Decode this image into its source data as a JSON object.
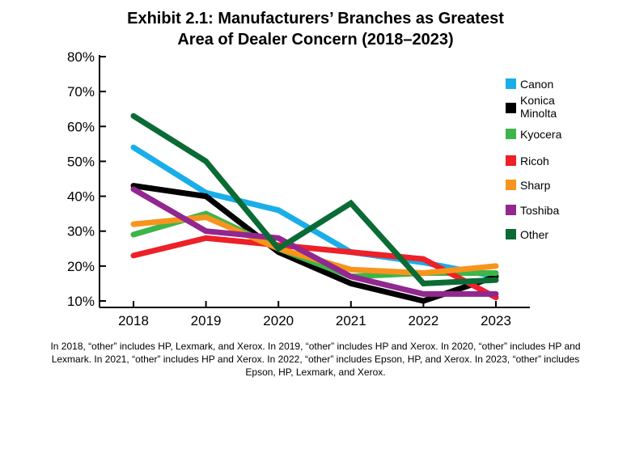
{
  "title_line1": "Exhibit 2.1: Manufacturers’ Branches as Greatest",
  "title_line2": "Area of Dealer Concern (2018–2023)",
  "footnote": "In 2018, “other” includes HP, Lexmark, and Xerox. In 2019, “other” includes HP and Xerox. In 2020, “other” includes HP and Lexmark. In 2021, “other” includes HP and Xerox. In 2022, “other” includes Epson, HP, and Xerox. In 2023, “other” includes Epson, HP, Lexmark, and Xerox.",
  "chart_data": {
    "type": "line",
    "title": "Exhibit 2.1: Manufacturers’ Branches as Greatest Area of Dealer Concern (2018–2023)",
    "x": [
      "2018",
      "2019",
      "2020",
      "2021",
      "2022",
      "2023"
    ],
    "ylim": [
      10,
      80
    ],
    "yticks": [
      "10%",
      "20%",
      "30%",
      "40%",
      "50%",
      "60%",
      "70%",
      "80%"
    ],
    "grid": false,
    "legend_position": "right",
    "series": [
      {
        "name": "Canon",
        "color": "#1aaee8",
        "values": [
          54,
          41,
          36,
          24,
          21,
          17
        ]
      },
      {
        "name": "Konica Minolta",
        "color": "#000000",
        "values": [
          43,
          40,
          24,
          15,
          10,
          17
        ]
      },
      {
        "name": "Kyocera",
        "color": "#3db54a",
        "values": [
          29,
          35,
          25,
          17,
          18,
          18
        ]
      },
      {
        "name": "Ricoh",
        "color": "#ee2028",
        "values": [
          23,
          28,
          26,
          24,
          22,
          11
        ]
      },
      {
        "name": "Sharp",
        "color": "#f7941d",
        "values": [
          32,
          34,
          25,
          19,
          18,
          20
        ]
      },
      {
        "name": "Toshiba",
        "color": "#92278f",
        "values": [
          42,
          30,
          28,
          17,
          12,
          12
        ]
      },
      {
        "name": "Other",
        "color": "#0b6b35",
        "values": [
          63,
          50,
          25,
          38,
          15,
          16
        ]
      }
    ]
  }
}
